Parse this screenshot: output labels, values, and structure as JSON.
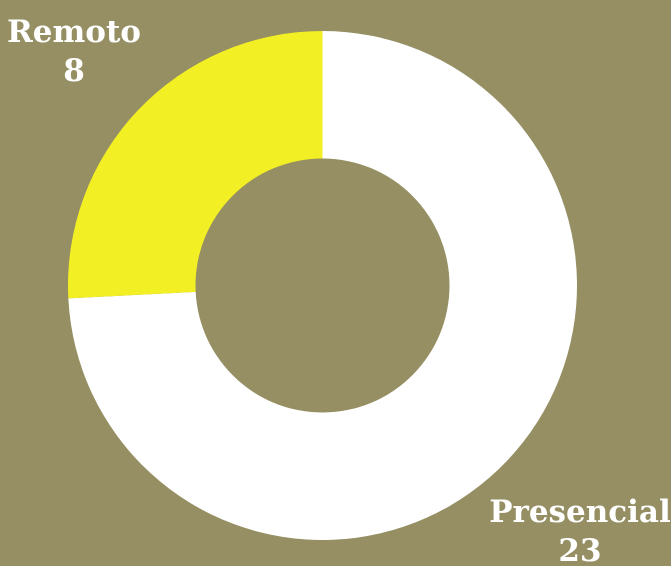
{
  "background_color": "#958f63",
  "chart_data": {
    "type": "pie",
    "variant": "donut",
    "slices": [
      {
        "label": "Presencial",
        "value": 23,
        "display_value": "23",
        "color": "#ffffff"
      },
      {
        "label": "Remoto",
        "value": 8,
        "display_value": "8",
        "color": "#f2ef24"
      }
    ],
    "legend": "none"
  }
}
